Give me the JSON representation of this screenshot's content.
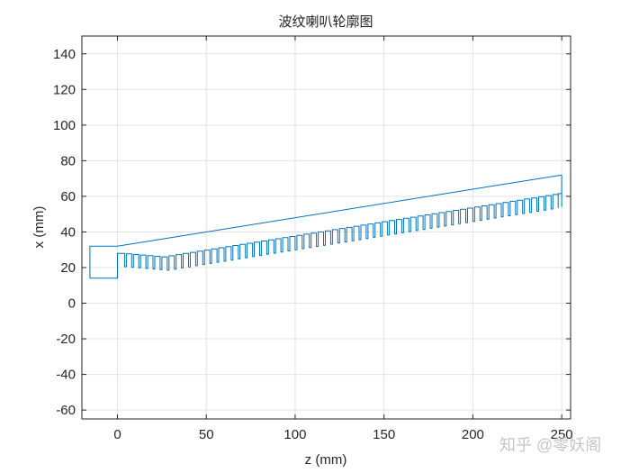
{
  "chart_data": {
    "type": "line",
    "title": "波纹喇叭轮廓图",
    "xlabel": "z (mm)",
    "ylabel": "x (mm)",
    "xlim": [
      -20,
      255
    ],
    "ylim": [
      -65,
      150
    ],
    "xticks": [
      0,
      50,
      100,
      150,
      200,
      250
    ],
    "yticks": [
      -60,
      -40,
      -20,
      0,
      20,
      40,
      60,
      80,
      100,
      120,
      140
    ],
    "grid": true,
    "line_color": "#0072BD",
    "series": [
      {
        "name": "corrugated horn profile",
        "description": "Waveguide feed section from z=-15.5 to 0 (x 14 to 32), outer wall linear from (0,32) to (250,72), corrugation teeth period ~4mm, tooth depth ~7.5mm, inner tips from ~28 at z=1 down to ~26 near z=25 then rising to ~61.5 at z=248",
        "outer_wall": {
          "z": [
            -15.5,
            0,
            250
          ],
          "x": [
            32,
            32,
            72
          ]
        },
        "waveguide_bottom": {
          "z": [
            -15.5,
            0
          ],
          "x": [
            14,
            14
          ]
        },
        "corrugation": {
          "z_start": 1,
          "z_end": 248,
          "period": 4,
          "tooth_width": 3,
          "depth": 7.5,
          "inner_start": 28,
          "inner_min": 26,
          "inner_min_z": 25,
          "inner_end": 61.5
        }
      }
    ]
  },
  "watermark": "知乎 @零妖阁"
}
